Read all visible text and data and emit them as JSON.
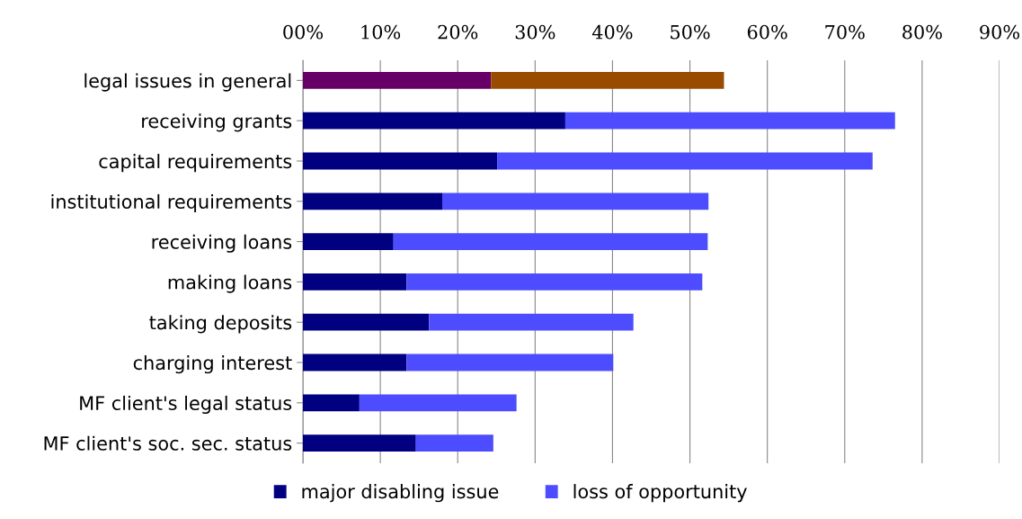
{
  "chart_data": {
    "type": "bar",
    "orientation": "horizontal",
    "stacked": true,
    "categories": [
      "legal issues in general",
      "receiving grants",
      "capital requirements",
      "institutional requirements",
      "receiving loans",
      "making loans",
      "taking deposits",
      "charging interest",
      "MF client's legal status",
      "MF client's soc. sec. status"
    ],
    "series": [
      {
        "name": "major disabling issue",
        "color": "#000080",
        "colors": [
          "#660066",
          "#000080",
          "#000080",
          "#000080",
          "#000080",
          "#000080",
          "#000080",
          "#000080",
          "#000080",
          "#000080"
        ],
        "values": [
          24.3,
          33.9,
          25.1,
          18.0,
          11.7,
          13.4,
          16.3,
          13.4,
          7.3,
          14.6
        ]
      },
      {
        "name": "loss of opportunity",
        "color": "#4d4dff",
        "colors": [
          "#994c00",
          "#4d4dff",
          "#4d4dff",
          "#4d4dff",
          "#4d4dff",
          "#4d4dff",
          "#4d4dff",
          "#4d4dff",
          "#4d4dff",
          "#4d4dff"
        ],
        "values": [
          30.1,
          42.6,
          48.5,
          34.4,
          40.6,
          38.2,
          26.4,
          26.7,
          20.3,
          10.0
        ]
      }
    ],
    "xlim": [
      0,
      90
    ],
    "xticks": [
      {
        "value": 0,
        "label": "00%"
      },
      {
        "value": 10,
        "label": "10%"
      },
      {
        "value": 20,
        "label": "20%"
      },
      {
        "value": 30,
        "label": "30%"
      },
      {
        "value": 40,
        "label": "40%"
      },
      {
        "value": 50,
        "label": "50%"
      },
      {
        "value": 60,
        "label": "60%"
      },
      {
        "value": 70,
        "label": "70%"
      },
      {
        "value": 80,
        "label": "80%"
      },
      {
        "value": 90,
        "label": "90%"
      }
    ],
    "grid": "x",
    "legend": "bottom"
  }
}
